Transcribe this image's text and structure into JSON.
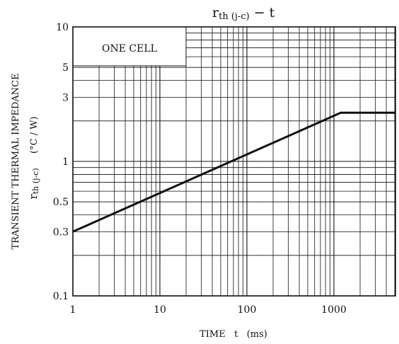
{
  "chart_data": {
    "type": "line",
    "title_main": "r",
    "title_sub": "th (j-c)",
    "title_suffix": " − t",
    "xlabel": "TIME   t   (ms)",
    "ylabel_line1": "TRANSIENT THERMAL IMPEDANCE",
    "ylabel_symbol": "r",
    "ylabel_sub": "th (j-c)",
    "ylabel_unit": "(°C / W)",
    "annotation": "ONE CELL",
    "x_scale": "log",
    "y_scale": "log",
    "xlim": [
      1,
      5000
    ],
    "ylim": [
      0.1,
      10
    ],
    "grid": true,
    "x_tick_labels": [
      {
        "value": 1,
        "label": "1"
      },
      {
        "value": 10,
        "label": "10"
      },
      {
        "value": 100,
        "label": "100"
      },
      {
        "value": 1000,
        "label": "1000"
      }
    ],
    "y_tick_labels": [
      {
        "value": 0.1,
        "label": "0.1"
      },
      {
        "value": 0.3,
        "label": "0.3"
      },
      {
        "value": 0.5,
        "label": "0.5"
      },
      {
        "value": 1,
        "label": "1"
      },
      {
        "value": 3,
        "label": "3"
      },
      {
        "value": 5,
        "label": "5"
      },
      {
        "value": 10,
        "label": "10"
      }
    ],
    "series": [
      {
        "x": [
          1,
          1200,
          5000
        ],
        "y": [
          0.3,
          2.3,
          2.3
        ]
      }
    ]
  }
}
